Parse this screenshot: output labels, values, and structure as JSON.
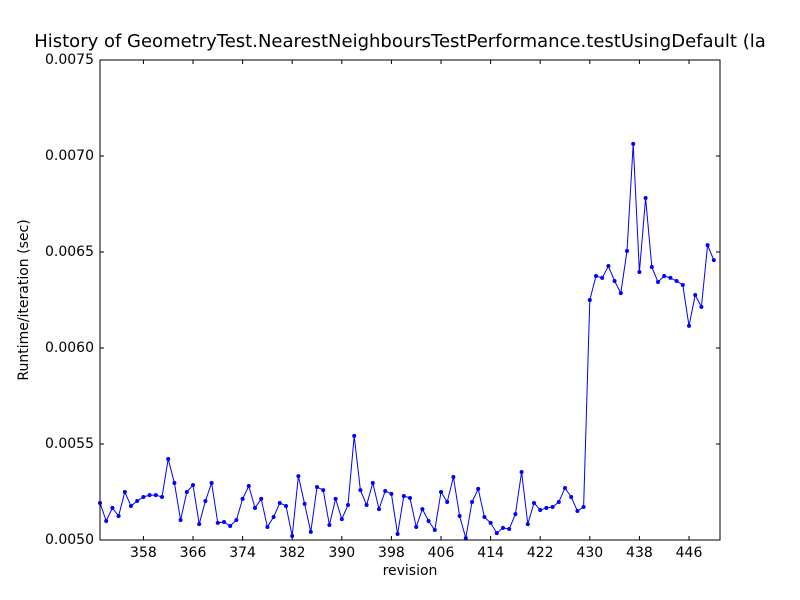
{
  "chart_data": {
    "type": "line",
    "title": "History of GeometryTest.NearestNeighboursTestPerformance.testUsingDefault (la",
    "xlabel": "revision",
    "ylabel": "Runtime/iteration (sec)",
    "color": "#0000ff",
    "x": [
      351,
      352,
      353,
      354,
      355,
      356,
      357,
      358,
      359,
      360,
      361,
      362,
      363,
      364,
      365,
      366,
      367,
      368,
      369,
      370,
      371,
      372,
      373,
      374,
      375,
      376,
      377,
      378,
      379,
      380,
      381,
      382,
      383,
      384,
      385,
      386,
      387,
      388,
      389,
      390,
      391,
      392,
      393,
      394,
      395,
      396,
      397,
      398,
      399,
      400,
      401,
      402,
      403,
      404,
      405,
      406,
      407,
      408,
      409,
      410,
      411,
      412,
      413,
      414,
      415,
      416,
      417,
      418,
      419,
      420,
      421,
      422,
      423,
      424,
      425,
      426,
      427,
      428,
      429,
      430,
      431,
      432,
      433,
      434,
      435,
      436,
      437,
      438,
      439,
      440,
      441,
      442,
      443,
      444,
      445,
      446,
      447,
      448,
      449,
      450
    ],
    "values": [
      0.005193,
      0.005099,
      0.005167,
      0.005125,
      0.00525,
      0.005177,
      0.005203,
      0.005224,
      0.005234,
      0.005234,
      0.005224,
      0.005422,
      0.005297,
      0.005104,
      0.00525,
      0.005286,
      0.005083,
      0.005203,
      0.005297,
      0.005089,
      0.005094,
      0.005073,
      0.005104,
      0.005214,
      0.005281,
      0.005167,
      0.005214,
      0.005068,
      0.00512,
      0.005193,
      0.005177,
      0.005021,
      0.005333,
      0.005188,
      0.005042,
      0.005276,
      0.00526,
      0.005078,
      0.005214,
      0.005109,
      0.005182,
      0.005542,
      0.00526,
      0.005182,
      0.005297,
      0.005161,
      0.005255,
      0.00524,
      0.005031,
      0.005229,
      0.005219,
      0.005068,
      0.005161,
      0.005099,
      0.005052,
      0.00525,
      0.005198,
      0.005328,
      0.005125,
      0.00501,
      0.005198,
      0.005266,
      0.00512,
      0.005089,
      0.005036,
      0.005063,
      0.005057,
      0.005135,
      0.005354,
      0.005083,
      0.005193,
      0.005156,
      0.005167,
      0.005172,
      0.005198,
      0.005271,
      0.005224,
      0.005151,
      0.005172,
      0.00625,
      0.006375,
      0.006365,
      0.006427,
      0.006349,
      0.006286,
      0.006505,
      0.007063,
      0.006396,
      0.006781,
      0.006422,
      0.006344,
      0.006375,
      0.006365,
      0.006349,
      0.006328,
      0.006115,
      0.006276,
      0.006214,
      0.006536,
      0.006458
    ],
    "xlim": [
      351,
      451
    ],
    "ylim": [
      0.005,
      0.0075
    ],
    "xticks": [
      358,
      366,
      374,
      382,
      390,
      398,
      406,
      414,
      422,
      430,
      438,
      446
    ],
    "yticks": [
      {
        "value": 0.005,
        "label": "0.0050"
      },
      {
        "value": 0.0055,
        "label": "0.0055"
      },
      {
        "value": 0.006,
        "label": "0.0060"
      },
      {
        "value": 0.0065,
        "label": "0.0065"
      },
      {
        "value": 0.007,
        "label": "0.0070"
      },
      {
        "value": 0.0075,
        "label": "0.0075"
      }
    ]
  }
}
